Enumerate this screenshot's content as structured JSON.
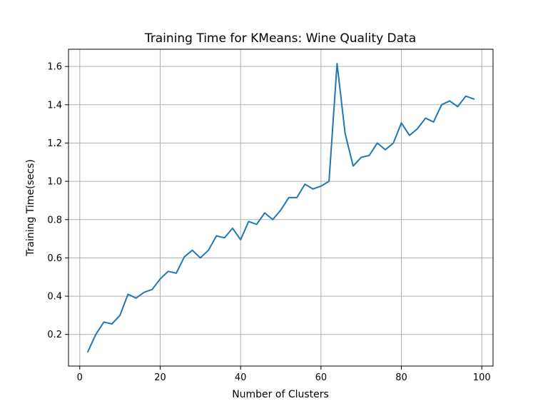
{
  "chart_data": {
    "type": "line",
    "title": "Training Time for KMeans: Wine Quality Data",
    "xlabel": "Number of Clusters",
    "ylabel": "Training Time(secs)",
    "xlim": [
      -2.8,
      102.8
    ],
    "ylim": [
      0.035,
      1.69
    ],
    "grid": true,
    "x_ticks": [
      0,
      20,
      40,
      60,
      80,
      100
    ],
    "x_tick_labels": [
      "0",
      "20",
      "40",
      "60",
      "80",
      "100"
    ],
    "y_ticks": [
      0.2,
      0.4,
      0.6,
      0.8,
      1.0,
      1.2,
      1.4,
      1.6
    ],
    "y_tick_labels": [
      "0.2",
      "0.4",
      "0.6",
      "0.8",
      "1.0",
      "1.2",
      "1.4",
      "1.6"
    ],
    "series": [
      {
        "color": "#1f77b4",
        "x": [
          2,
          4,
          6,
          8,
          10,
          12,
          14,
          16,
          18,
          20,
          22,
          24,
          26,
          28,
          30,
          32,
          34,
          36,
          38,
          40,
          42,
          44,
          46,
          48,
          50,
          52,
          54,
          56,
          58,
          60,
          62,
          64,
          66,
          68,
          70,
          72,
          74,
          76,
          78,
          80,
          82,
          84,
          86,
          88,
          90,
          92,
          94,
          96,
          98
        ],
        "y": [
          0.11,
          0.2,
          0.265,
          0.255,
          0.3,
          0.41,
          0.39,
          0.42,
          0.435,
          0.49,
          0.53,
          0.52,
          0.605,
          0.64,
          0.6,
          0.64,
          0.715,
          0.705,
          0.755,
          0.695,
          0.79,
          0.775,
          0.835,
          0.8,
          0.85,
          0.915,
          0.915,
          0.985,
          0.96,
          0.975,
          1.0,
          1.615,
          1.25,
          1.08,
          1.125,
          1.135,
          1.2,
          1.165,
          1.2,
          1.305,
          1.24,
          1.275,
          1.33,
          1.31,
          1.4,
          1.42,
          1.39,
          1.445,
          1.43
        ]
      }
    ]
  }
}
